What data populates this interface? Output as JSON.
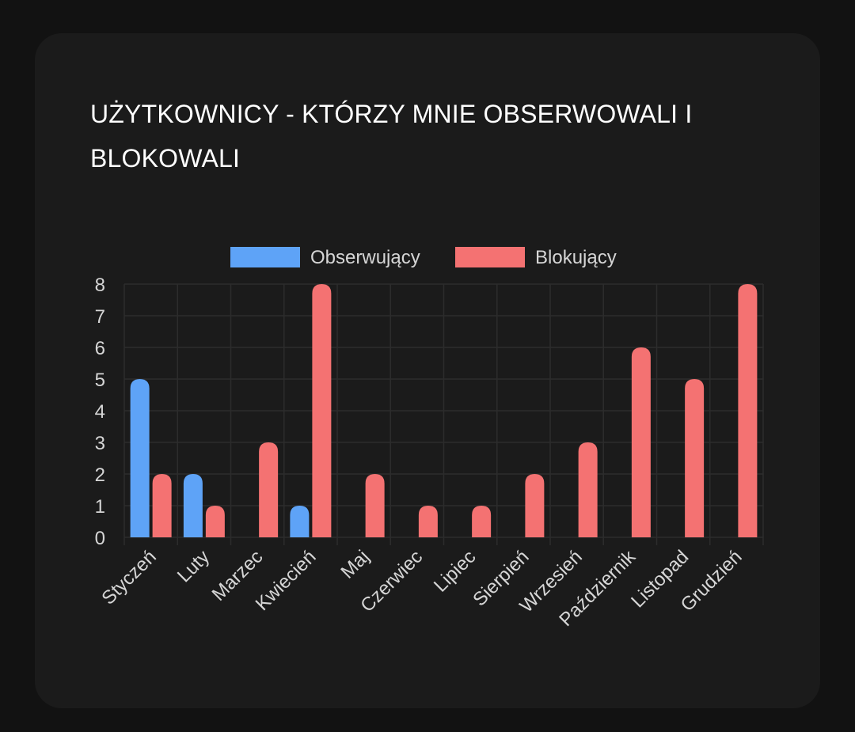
{
  "card": {
    "title": "UŻYTKOWNICY - KTÓRZY MNIE OBSERWOWALI I BLOKOWALI"
  },
  "colors": {
    "observers": "#5ea3f7",
    "blockers": "#f47272",
    "grid": "#2c2c2c",
    "text": "#d6d6d6"
  },
  "chart_data": {
    "type": "bar",
    "title": "UŻYTKOWNICY - KTÓRZY MNIE OBSERWOWALI I BLOKOWALI",
    "categories": [
      "Styczeń",
      "Luty",
      "Marzec",
      "Kwiecień",
      "Maj",
      "Czerwiec",
      "Lipiec",
      "Sierpień",
      "Wrzesień",
      "Październik",
      "Listopad",
      "Grudzień"
    ],
    "series": [
      {
        "name": "Obserwujący",
        "color": "#5ea3f7",
        "values": [
          5,
          2,
          0,
          1,
          0,
          0,
          0,
          0,
          0,
          0,
          0,
          0
        ]
      },
      {
        "name": "Blokujący",
        "color": "#f47272",
        "values": [
          2,
          1,
          3,
          8,
          2,
          1,
          1,
          2,
          3,
          6,
          5,
          8
        ]
      }
    ],
    "ylim": [
      0,
      8
    ],
    "yticks": [
      "0",
      "1",
      "2",
      "3",
      "4",
      "5",
      "6",
      "7",
      "8"
    ],
    "grid": true,
    "legend": "top-center",
    "xlabel": "",
    "ylabel": ""
  }
}
